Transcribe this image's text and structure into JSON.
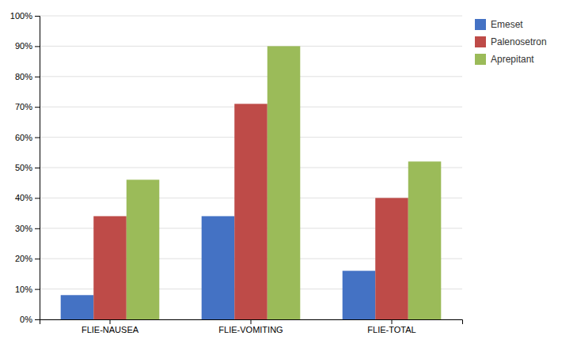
{
  "chart_data": {
    "type": "bar",
    "categories": [
      "FLIE-NAUSEA",
      "FLIE-VOMITING",
      "FLIE-TOTAL"
    ],
    "series": [
      {
        "name": "Emeset",
        "color": "#4472C4",
        "values": [
          0.08,
          0.34,
          0.16
        ]
      },
      {
        "name": "Palenosetron",
        "color": "#BE4B48",
        "values": [
          0.34,
          0.71,
          0.4
        ]
      },
      {
        "name": "Aprepitant",
        "color": "#9BBB59",
        "values": [
          0.46,
          0.9,
          0.52
        ]
      }
    ],
    "ylim": [
      0,
      1.0
    ],
    "yticks": [
      {
        "value": 0,
        "label": "0%"
      },
      {
        "value": 0.1,
        "label": "10%"
      },
      {
        "value": 0.2,
        "label": "20%"
      },
      {
        "value": 0.3,
        "label": "30%"
      },
      {
        "value": 0.4,
        "label": "40%"
      },
      {
        "value": 0.5,
        "label": "50%"
      },
      {
        "value": 0.6,
        "label": "60%"
      },
      {
        "value": 0.7,
        "label": "70%"
      },
      {
        "value": 0.8,
        "label": "80%"
      },
      {
        "value": 0.9,
        "label": "90%"
      },
      {
        "value": 1.0,
        "label": "100%"
      }
    ],
    "grid": true,
    "legend": "upper-right"
  }
}
